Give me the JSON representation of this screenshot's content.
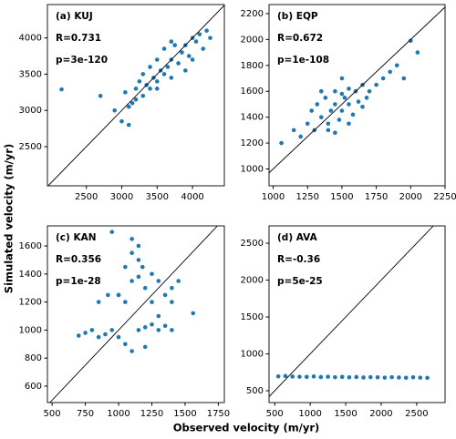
{
  "figure": {
    "xlabel": "Observed velocity (m/yr)",
    "ylabel": "Simulated velocity (m/yr)"
  },
  "chart_data": [
    {
      "type": "scatter",
      "title": "(a) KUJ",
      "annotations": [
        "R=0.731",
        "p=3e-120"
      ],
      "color": "#1f77b4",
      "xlim": [
        1950,
        4450
      ],
      "ylim": [
        1960,
        4460
      ],
      "xticks": [
        2500,
        3000,
        3500,
        4000
      ],
      "yticks": [
        2500,
        3000,
        3500,
        4000
      ],
      "x": [
        2150,
        2700,
        2900,
        3000,
        3050,
        3100,
        3150,
        3200,
        3250,
        3300,
        3300,
        3350,
        3400,
        3400,
        3450,
        3500,
        3500,
        3550,
        3600,
        3600,
        3650,
        3700,
        3700,
        3750,
        3800,
        3850,
        3900,
        3950,
        4000,
        4000,
        4050,
        4100,
        4150,
        4200,
        3200,
        3500,
        3900,
        3100,
        3700,
        4250
      ],
      "y": [
        3290,
        3200,
        3000,
        2850,
        3250,
        2800,
        3100,
        3300,
        3400,
        3200,
        3500,
        3350,
        3300,
        3600,
        3450,
        3400,
        3700,
        3550,
        3500,
        3850,
        3600,
        3700,
        3450,
        3900,
        3650,
        3800,
        3900,
        3750,
        4000,
        3700,
        3950,
        4050,
        3850,
        4100,
        3150,
        3300,
        3550,
        3050,
        3950,
        4000
      ]
    },
    {
      "type": "scatter",
      "title": "(b) EQP",
      "annotations": [
        "R=0.672",
        "p=1e-108"
      ],
      "color": "#1f77b4",
      "xlim": [
        970,
        2250
      ],
      "ylim": [
        870,
        2270
      ],
      "xticks": [
        1000,
        1250,
        1500,
        1750,
        2000,
        2250
      ],
      "yticks": [
        1000,
        1200,
        1400,
        1600,
        1800,
        2000,
        2200
      ],
      "x": [
        1060,
        1150,
        1200,
        1250,
        1280,
        1300,
        1320,
        1350,
        1380,
        1400,
        1420,
        1450,
        1450,
        1480,
        1500,
        1500,
        1520,
        1550,
        1550,
        1580,
        1600,
        1620,
        1650,
        1680,
        1700,
        1750,
        1800,
        1850,
        1900,
        1950,
        2000,
        2050,
        1350,
        1450,
        1550,
        1650,
        1400,
        1500
      ],
      "y": [
        1200,
        1300,
        1250,
        1350,
        1450,
        1300,
        1500,
        1400,
        1550,
        1350,
        1450,
        1500,
        1600,
        1380,
        1450,
        1700,
        1550,
        1500,
        1620,
        1420,
        1600,
        1520,
        1650,
        1550,
        1600,
        1650,
        1700,
        1750,
        1800,
        1700,
        1990,
        1900,
        1600,
        1280,
        1350,
        1480,
        1300,
        1580
      ]
    },
    {
      "type": "scatter",
      "title": "(c) KAN",
      "annotations": [
        "R=0.356",
        "p=1e-28"
      ],
      "color": "#1f77b4",
      "xlim": [
        465,
        1795
      ],
      "ylim": [
        483,
        1743
      ],
      "xticks": [
        500,
        750,
        1000,
        1250,
        1500,
        1750
      ],
      "yticks": [
        600,
        800,
        1000,
        1200,
        1400,
        1600
      ],
      "x": [
        700,
        750,
        800,
        850,
        900,
        950,
        1000,
        1050,
        1100,
        1150,
        1200,
        1250,
        1300,
        1350,
        1400,
        1000,
        1050,
        1100,
        1150,
        1100,
        1050,
        1150,
        1200,
        1250,
        1300,
        1350,
        1400,
        1250,
        1300,
        950,
        1000,
        1100,
        1150,
        1180,
        1400,
        1560,
        920,
        850,
        1450,
        1200
      ],
      "y": [
        960,
        980,
        1000,
        950,
        970,
        1000,
        950,
        900,
        850,
        1000,
        1020,
        1040,
        1000,
        1030,
        1000,
        1250,
        1200,
        1350,
        1500,
        1650,
        1450,
        1600,
        1300,
        1200,
        1350,
        1250,
        1200,
        1400,
        1100,
        1700,
        1250,
        1550,
        1380,
        1450,
        1300,
        1120,
        1250,
        1200,
        1350,
        880
      ]
    },
    {
      "type": "scatter",
      "title": "(d) AVA",
      "annotations": [
        "R=-0.36",
        "p=5e-25"
      ],
      "color": "#1f77b4",
      "xlim": [
        420,
        2900
      ],
      "ylim": [
        340,
        2735
      ],
      "xticks": [
        500,
        1000,
        1500,
        2000,
        2500
      ],
      "yticks": [
        500,
        1000,
        1500,
        2000,
        2500
      ],
      "x": [
        550,
        650,
        750,
        850,
        950,
        1050,
        1150,
        1250,
        1350,
        1450,
        1550,
        1650,
        1750,
        1850,
        1950,
        2050,
        2150,
        2250,
        2350,
        2450,
        2550,
        2650
      ],
      "y": [
        695,
        700,
        692,
        690,
        688,
        694,
        686,
        690,
        684,
        688,
        682,
        686,
        680,
        684,
        682,
        678,
        684,
        680,
        676,
        682,
        678,
        675
      ]
    }
  ]
}
